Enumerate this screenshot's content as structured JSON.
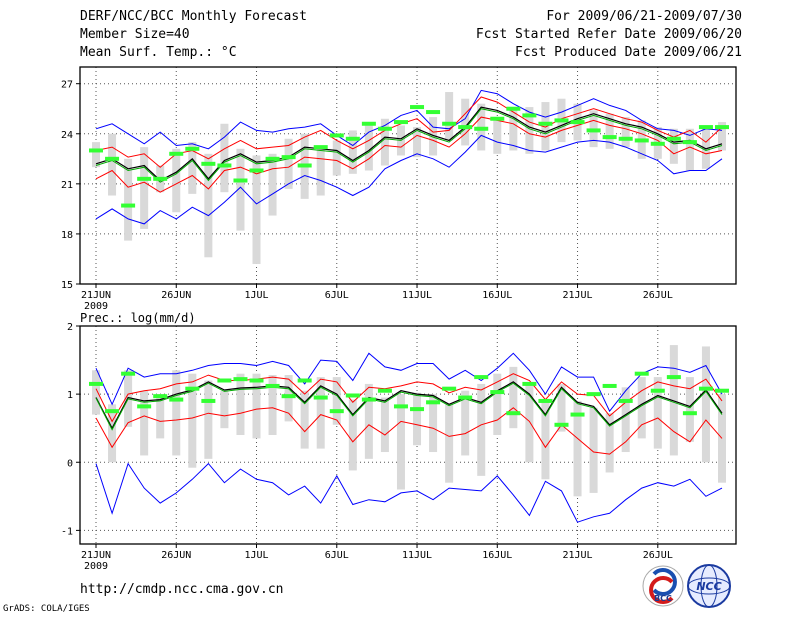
{
  "header": {
    "title": "DERF/NCC/BCC Monthly Forecast",
    "member_size": "Member Size=40",
    "variable": "Mean Surf. Temp.: °C",
    "period": "For 2009/06/21-2009/07/30",
    "refer_date": "Fcst Started Refer Date 2009/06/20",
    "produced_date": "Fcst Produced Date 2009/06/21"
  },
  "footer": {
    "url": "http://cmdp.ncc.cma.gov.cn",
    "grads": "GrADS: COLA/IGES",
    "logo_bcc": "BCC",
    "logo_ncc": "NCC"
  },
  "colors": {
    "max": "#0000ff",
    "min": "#0000ff",
    "p": "#ff0000",
    "mean": "#000000",
    "median": "#00aa00",
    "bar": "#d9d9d9",
    "marker": "#33ff33"
  },
  "chart_data": [
    {
      "type": "line",
      "title": "Mean Surf. Temp.: °C",
      "ylim": [
        15,
        28
      ],
      "yticks": [
        15,
        18,
        21,
        24,
        27
      ],
      "xticks": [
        {
          "day": 1,
          "label": "21JUN"
        },
        {
          "day": 6,
          "label": "26JUN"
        },
        {
          "day": 11,
          "label": "1JUL"
        },
        {
          "day": 16,
          "label": "6JUL"
        },
        {
          "day": 21,
          "label": "11JUL"
        },
        {
          "day": 26,
          "label": "16JUL"
        },
        {
          "day": 31,
          "label": "21JUL"
        },
        {
          "day": 36,
          "label": "26JUL"
        }
      ],
      "year_label": "2009",
      "days": 40,
      "series": [
        {
          "name": "max",
          "values": [
            24.3,
            24.6,
            24.0,
            23.4,
            24.1,
            23.3,
            23.4,
            23.1,
            23.8,
            24.7,
            24.2,
            24.1,
            24.3,
            24.4,
            24.6,
            23.9,
            23.3,
            24.1,
            24.5,
            25.1,
            25.4,
            24.4,
            24.3,
            24.9,
            26.6,
            26.4,
            25.8,
            25.3,
            25.0,
            25.3,
            25.7,
            26.1,
            25.7,
            25.4,
            24.8,
            24.3,
            24.2,
            23.9,
            24.3,
            24.2
          ]
        },
        {
          "name": "p90",
          "values": [
            23.0,
            23.2,
            22.6,
            22.8,
            22.0,
            22.8,
            23.0,
            22.5,
            23.1,
            23.6,
            23.1,
            23.2,
            23.3,
            23.8,
            24.2,
            23.6,
            23.1,
            23.6,
            24.2,
            24.6,
            24.9,
            24.1,
            24.2,
            25.2,
            26.2,
            25.9,
            25.3,
            24.7,
            24.4,
            24.9,
            25.2,
            25.5,
            25.2,
            24.9,
            24.7,
            24.2,
            23.8,
            24.2,
            23.5,
            24.4
          ]
        },
        {
          "name": "mean",
          "values": [
            22.2,
            22.5,
            21.9,
            22.1,
            21.2,
            21.7,
            22.5,
            21.3,
            22.4,
            22.8,
            22.3,
            22.4,
            22.6,
            23.2,
            23.1,
            23.0,
            22.4,
            23.0,
            23.8,
            23.7,
            24.3,
            23.9,
            23.6,
            24.4,
            25.6,
            25.4,
            25.0,
            24.4,
            24.1,
            24.5,
            24.9,
            25.2,
            24.9,
            24.6,
            24.4,
            24.0,
            23.5,
            23.6,
            23.1,
            23.4
          ]
        },
        {
          "name": "median",
          "values": [
            22.1,
            22.4,
            21.8,
            22.0,
            21.1,
            21.6,
            22.4,
            21.2,
            22.3,
            22.7,
            22.2,
            22.3,
            22.5,
            23.1,
            23.0,
            22.9,
            22.3,
            22.9,
            23.7,
            23.6,
            24.2,
            23.8,
            23.5,
            24.3,
            25.5,
            25.3,
            24.9,
            24.3,
            24.0,
            24.4,
            24.8,
            25.1,
            24.8,
            24.5,
            24.3,
            23.9,
            23.4,
            23.5,
            23.0,
            23.3
          ]
        },
        {
          "name": "p10",
          "values": [
            21.3,
            21.8,
            20.8,
            21.1,
            20.5,
            21.0,
            21.5,
            20.7,
            21.8,
            22.0,
            21.6,
            21.9,
            22.0,
            22.6,
            22.5,
            22.4,
            21.9,
            22.5,
            23.3,
            23.2,
            23.9,
            23.6,
            23.2,
            24.0,
            25.0,
            24.8,
            24.6,
            24.0,
            23.8,
            24.2,
            24.5,
            24.8,
            24.5,
            24.3,
            24.0,
            23.6,
            22.8,
            23.2,
            22.8,
            23.0
          ]
        },
        {
          "name": "min",
          "values": [
            18.9,
            19.5,
            18.9,
            18.6,
            19.4,
            18.9,
            19.6,
            19.1,
            19.9,
            20.8,
            19.8,
            20.4,
            21.0,
            21.5,
            21.2,
            20.8,
            20.3,
            20.8,
            21.9,
            22.4,
            22.8,
            22.5,
            22.0,
            22.9,
            23.9,
            23.5,
            23.3,
            23.0,
            22.9,
            23.2,
            23.5,
            23.6,
            23.5,
            23.2,
            22.8,
            22.4,
            21.6,
            21.8,
            21.8,
            22.5
          ]
        }
      ],
      "bars": [
        [
          22.0,
          23.5
        ],
        [
          20.3,
          24.0
        ],
        [
          17.6,
          22.5
        ],
        [
          18.3,
          23.2
        ],
        [
          20.5,
          22.1
        ],
        [
          19.3,
          23.1
        ],
        [
          20.4,
          23.5
        ],
        [
          16.6,
          22.8
        ],
        [
          20.5,
          24.6
        ],
        [
          18.2,
          23.1
        ],
        [
          16.2,
          22.7
        ],
        [
          19.1,
          22.8
        ],
        [
          20.7,
          23.7
        ],
        [
          20.1,
          24.0
        ],
        [
          20.3,
          23.2
        ],
        [
          21.5,
          23.6
        ],
        [
          21.6,
          24.2
        ],
        [
          21.8,
          24.5
        ],
        [
          22.1,
          24.9
        ],
        [
          22.7,
          24.5
        ],
        [
          22.6,
          24.4
        ],
        [
          22.7,
          25.0
        ],
        [
          23.6,
          26.5
        ],
        [
          23.3,
          26.1
        ],
        [
          23.0,
          25.8
        ],
        [
          22.8,
          25.0
        ],
        [
          23.0,
          25.5
        ],
        [
          22.8,
          25.6
        ],
        [
          23.0,
          25.9
        ],
        [
          23.5,
          26.1
        ],
        [
          23.6,
          25.8
        ],
        [
          23.2,
          25.4
        ],
        [
          23.1,
          25.2
        ],
        [
          23.2,
          25.0
        ],
        [
          22.5,
          24.8
        ],
        [
          22.5,
          24.4
        ],
        [
          22.2,
          24.3
        ],
        [
          21.8,
          24.3
        ],
        [
          21.9,
          24.3
        ],
        [
          23.0,
          24.7
        ]
      ],
      "markers": [
        23.0,
        22.5,
        19.7,
        21.3,
        21.3,
        22.8,
        23.1,
        22.2,
        22.1,
        21.2,
        21.8,
        22.5,
        22.6,
        22.1,
        23.2,
        23.9,
        23.7,
        24.6,
        24.3,
        24.7,
        25.6,
        25.3,
        24.6,
        24.4,
        24.3,
        24.9,
        25.5,
        25.1,
        24.6,
        24.8,
        24.7,
        24.2,
        23.8,
        23.7,
        23.6,
        23.4,
        23.7,
        23.5,
        24.4,
        24.4
      ]
    },
    {
      "type": "line",
      "title": "Prec.: log(mm/d)",
      "ylim": [
        -1.2,
        2.0
      ],
      "yticks": [
        -1,
        0,
        1,
        2
      ],
      "xticks": [
        {
          "day": 1,
          "label": "21JUN"
        },
        {
          "day": 6,
          "label": "26JUN"
        },
        {
          "day": 11,
          "label": "1JUL"
        },
        {
          "day": 16,
          "label": "6JUL"
        },
        {
          "day": 21,
          "label": "11JUL"
        },
        {
          "day": 26,
          "label": "16JUL"
        },
        {
          "day": 31,
          "label": "21JUL"
        },
        {
          "day": 36,
          "label": "26JUL"
        }
      ],
      "year_label": "2009",
      "days": 40,
      "series": [
        {
          "name": "max",
          "values": [
            1.38,
            0.85,
            1.38,
            1.25,
            1.3,
            1.3,
            1.35,
            1.42,
            1.45,
            1.45,
            1.42,
            1.48,
            1.42,
            1.15,
            1.5,
            1.48,
            1.2,
            1.6,
            1.4,
            1.35,
            1.45,
            1.45,
            1.22,
            1.35,
            1.2,
            1.38,
            1.6,
            1.35,
            1.0,
            1.4,
            1.25,
            1.25,
            0.75,
            1.05,
            1.3,
            1.4,
            1.38,
            1.32,
            1.42,
            1.0
          ]
        },
        {
          "name": "p90",
          "values": [
            1.08,
            0.6,
            1.0,
            1.05,
            1.08,
            1.15,
            1.18,
            1.28,
            1.2,
            1.2,
            1.22,
            1.25,
            1.22,
            1.0,
            1.22,
            1.18,
            0.88,
            1.1,
            1.08,
            1.12,
            1.18,
            1.15,
            1.02,
            1.1,
            1.06,
            1.18,
            1.3,
            1.2,
            0.92,
            1.18,
            1.0,
            0.98,
            0.68,
            0.88,
            1.05,
            1.18,
            1.12,
            1.08,
            1.22,
            0.9
          ]
        },
        {
          "name": "mean",
          "values": [
            0.95,
            0.5,
            0.95,
            0.9,
            0.92,
            1.0,
            1.06,
            1.18,
            1.06,
            1.09,
            1.1,
            1.12,
            1.1,
            0.88,
            1.12,
            1.0,
            0.7,
            0.95,
            0.9,
            1.05,
            1.0,
            0.98,
            0.85,
            0.95,
            0.88,
            1.05,
            1.18,
            1.0,
            0.7,
            1.1,
            0.88,
            0.82,
            0.55,
            0.7,
            0.85,
            0.98,
            0.9,
            0.82,
            1.06,
            0.72
          ]
        },
        {
          "name": "median",
          "values": [
            0.94,
            0.48,
            0.93,
            0.88,
            0.9,
            0.98,
            1.04,
            1.16,
            1.04,
            1.07,
            1.08,
            1.1,
            1.08,
            0.86,
            1.1,
            0.98,
            0.68,
            0.93,
            0.88,
            1.03,
            0.98,
            0.96,
            0.83,
            0.93,
            0.86,
            1.03,
            1.16,
            0.98,
            0.68,
            1.08,
            0.86,
            0.8,
            0.53,
            0.68,
            0.83,
            0.96,
            0.88,
            0.8,
            1.04,
            0.7
          ]
        },
        {
          "name": "p10",
          "values": [
            0.65,
            0.22,
            0.58,
            0.68,
            0.6,
            0.62,
            0.65,
            0.72,
            0.68,
            0.72,
            0.78,
            0.8,
            0.72,
            0.45,
            0.7,
            0.62,
            0.3,
            0.55,
            0.4,
            0.6,
            0.55,
            0.5,
            0.38,
            0.42,
            0.55,
            0.62,
            0.8,
            0.6,
            0.22,
            0.55,
            0.35,
            0.15,
            0.12,
            0.3,
            0.55,
            0.65,
            0.45,
            0.3,
            0.62,
            0.35
          ]
        },
        {
          "name": "min",
          "values": [
            -0.02,
            -0.75,
            -0.02,
            -0.38,
            -0.6,
            -0.45,
            -0.25,
            -0.02,
            -0.3,
            -0.1,
            -0.25,
            -0.3,
            -0.48,
            -0.35,
            -0.6,
            -0.2,
            -0.62,
            -0.55,
            -0.58,
            -0.45,
            -0.42,
            -0.55,
            -0.38,
            -0.4,
            -0.42,
            -0.2,
            -0.48,
            -0.78,
            -0.28,
            -0.42,
            -0.88,
            -0.8,
            -0.75,
            -0.55,
            -0.38,
            -0.3,
            -0.35,
            -0.25,
            -0.5,
            -0.38
          ]
        }
      ],
      "bars": [
        [
          0.7,
          1.35
        ],
        [
          0.0,
          0.85
        ],
        [
          0.52,
          1.35
        ],
        [
          0.1,
          1.05
        ],
        [
          0.35,
          1.0
        ],
        [
          0.1,
          1.35
        ],
        [
          -0.08,
          1.3
        ],
        [
          0.05,
          1.2
        ],
        [
          0.5,
          1.05
        ],
        [
          0.4,
          1.3
        ],
        [
          0.35,
          1.3
        ],
        [
          0.4,
          1.28
        ],
        [
          0.6,
          1.28
        ],
        [
          0.2,
          1.05
        ],
        [
          0.2,
          1.25
        ],
        [
          0.55,
          1.25
        ],
        [
          -0.12,
          0.92
        ],
        [
          0.05,
          1.15
        ],
        [
          0.15,
          0.95
        ],
        [
          -0.4,
          1.0
        ],
        [
          0.25,
          1.02
        ],
        [
          0.15,
          1.0
        ],
        [
          -0.3,
          0.85
        ],
        [
          0.1,
          1.05
        ],
        [
          -0.2,
          1.15
        ],
        [
          0.4,
          1.3
        ],
        [
          0.5,
          1.4
        ],
        [
          0.0,
          1.15
        ],
        [
          -0.25,
          0.92
        ],
        [
          0.45,
          1.15
        ],
        [
          -0.5,
          0.9
        ],
        [
          -0.45,
          0.8
        ],
        [
          -0.15,
          0.72
        ],
        [
          0.15,
          1.1
        ],
        [
          0.35,
          1.25
        ],
        [
          0.2,
          1.25
        ],
        [
          0.1,
          1.72
        ],
        [
          0.3,
          1.25
        ],
        [
          0.0,
          1.7
        ],
        [
          -0.3,
          1.0
        ]
      ],
      "markers": [
        1.15,
        0.75,
        1.3,
        0.82,
        0.97,
        0.92,
        1.08,
        0.9,
        1.2,
        1.22,
        1.2,
        1.12,
        0.97,
        1.2,
        0.95,
        0.75,
        0.98,
        0.92,
        1.05,
        0.82,
        0.78,
        0.88,
        1.08,
        0.95,
        1.25,
        1.03,
        0.72,
        1.15,
        0.9,
        0.55,
        0.7,
        1.0,
        1.12,
        0.9,
        1.3,
        1.05,
        1.25,
        0.72,
        1.08,
        1.05
      ]
    }
  ]
}
